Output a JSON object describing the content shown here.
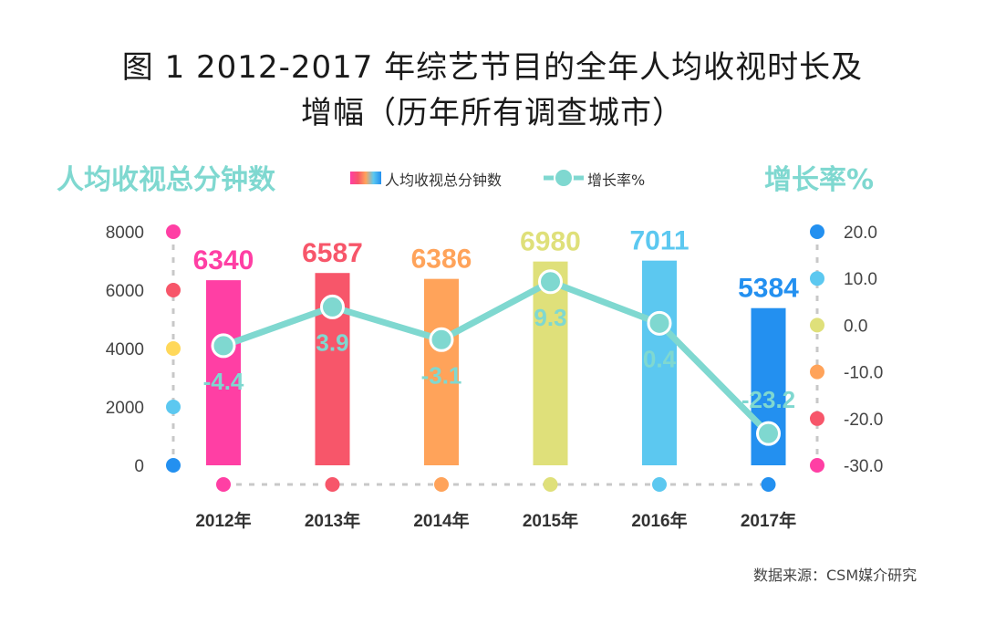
{
  "title_line1": "图 1  2012-2017 年综艺节目的全年人均收视时长及",
  "title_line2": "增幅（历年所有调查城市）",
  "legend": {
    "bar": "人均收视总分钟数",
    "line": "增长率%"
  },
  "source": "数据来源：CSM媒介研究",
  "colors": {
    "bars": [
      "#ff3fa4",
      "#f7566a",
      "#ffa35a",
      "#dfe07a",
      "#5cc8f0",
      "#2390f0"
    ],
    "line": "#7fd8d0",
    "left_dots": [
      "#ff3fa4",
      "#f7566a",
      "#ffd85a",
      "#5cc8f0",
      "#2390f0"
    ],
    "right_dots": [
      "#2390f0",
      "#5cc8f0",
      "#dfe07a",
      "#ffa35a",
      "#f7566a",
      "#ff3fa4"
    ]
  },
  "chart_data": {
    "type": "bar",
    "title": "图 1  2012-2017 年综艺节目的全年人均收视时长及增幅（历年所有调查城市）",
    "categories": [
      "2012年",
      "2013年",
      "2014年",
      "2015年",
      "2016年",
      "2017年"
    ],
    "series": [
      {
        "name": "人均收视总分钟数",
        "type": "bar",
        "axis": "left",
        "values": [
          6340,
          6587,
          6386,
          6980,
          7011,
          5384
        ]
      },
      {
        "name": "增长率%",
        "type": "line",
        "axis": "right",
        "values": [
          -4.4,
          3.9,
          -3.1,
          9.3,
          0.4,
          -23.2
        ]
      }
    ],
    "value_labels": [
      "6340",
      "6587",
      "6386",
      "6980",
      "7011",
      "5384"
    ],
    "rate_labels": [
      "-4.4",
      "3.9",
      "-3.1",
      "9.3",
      "0.4",
      "-23.2"
    ],
    "ylabel_left": "人均收视总分钟数",
    "ylabel_right": "增长率%",
    "ylim_left": [
      0,
      8000
    ],
    "ylim_right": [
      -30,
      20
    ],
    "yticks_left": [
      "0",
      "2000",
      "4000",
      "6000",
      "8000"
    ],
    "yticks_right": [
      "20.0",
      "10.0",
      "0.0",
      "-10.0",
      "-20.0",
      "-30.0"
    ]
  }
}
